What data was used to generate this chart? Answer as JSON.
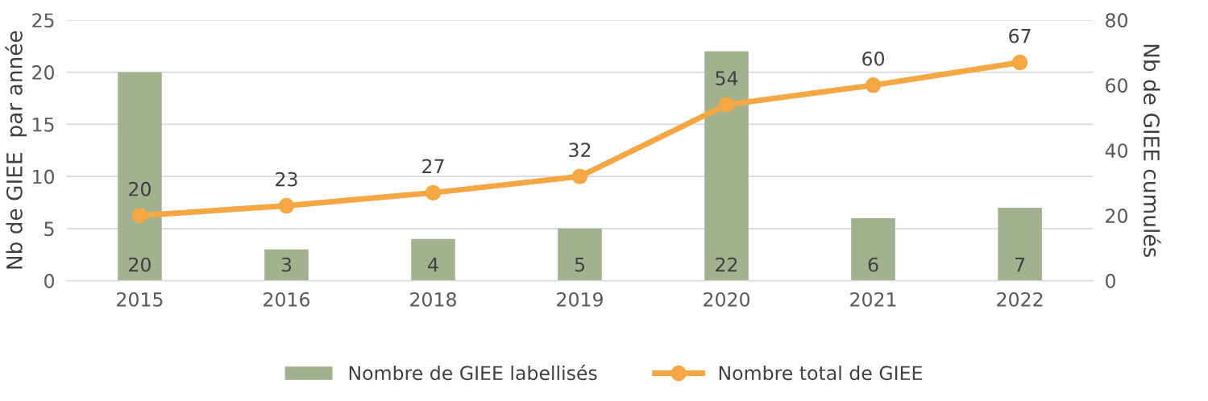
{
  "chart_data": {
    "type": "bar",
    "categories": [
      "2015",
      "2016",
      "2018",
      "2019",
      "2020",
      "2021",
      "2022"
    ],
    "series": [
      {
        "name": "Nombre de GIEE labellisés",
        "color": "#a3b18f",
        "values": [
          20,
          3,
          4,
          5,
          22,
          6,
          7
        ]
      },
      {
        "name": "Nombre total de GIEE",
        "type": "line",
        "axis": "y2",
        "color": "#f4a742",
        "marker": "circle",
        "values": [
          20,
          23,
          27,
          32,
          54,
          60,
          67
        ]
      }
    ],
    "ylabel": "Nb de GIEE  par année",
    "y2label": "Nb de GIEE cumulés",
    "ylim": [
      0,
      25
    ],
    "yticks": [
      0,
      5,
      10,
      15,
      20,
      25
    ],
    "y2lim": [
      0,
      80
    ],
    "y2ticks": [
      0,
      20,
      40,
      60,
      80
    ],
    "grid": "y",
    "legend": "bottom",
    "data_labels": true
  }
}
